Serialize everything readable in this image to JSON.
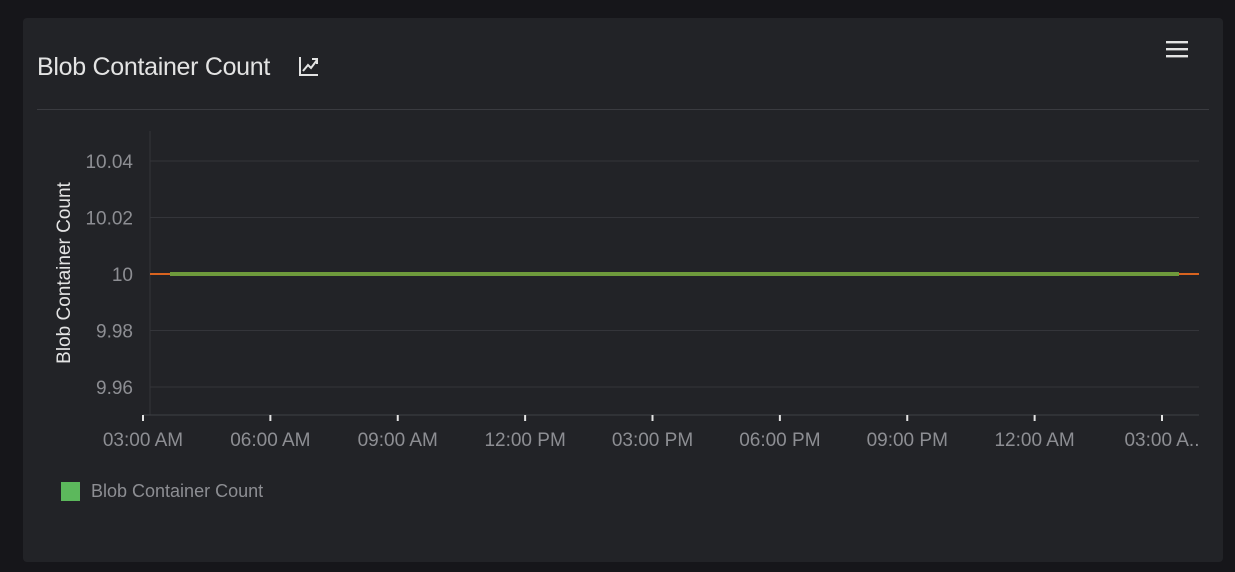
{
  "panel": {
    "title": "Blob Container Count",
    "icons": {
      "expand": "open-chart-icon",
      "menu": "hamburger-menu-icon"
    }
  },
  "colors": {
    "background": "#16161a",
    "panel": "#222327",
    "grid": "#34353a",
    "tick_text": "#8d8e93",
    "series": "#6e9a3c",
    "threshold": "#d9631f",
    "legend_swatch": "#5cb85c"
  },
  "chart_data": {
    "type": "line",
    "title": "Blob Container Count",
    "ylabel": "Blob Container Count",
    "xlabel": "",
    "ylim": [
      9.95,
      10.055
    ],
    "yticks": [
      10.04,
      10.02,
      10,
      9.98,
      9.96
    ],
    "ytick_labels": [
      "10.04",
      "10.02",
      "10",
      "9.98",
      "9.96"
    ],
    "xtick_labels": [
      "03:00 AM",
      "06:00 AM",
      "09:00 AM",
      "12:00 PM",
      "03:00 PM",
      "06:00 PM",
      "09:00 PM",
      "12:00 AM",
      "03:00 A.."
    ],
    "grid": true,
    "legend_position": "bottom-left",
    "series": [
      {
        "name": "Blob Container Count",
        "values": [
          10,
          10,
          10,
          10,
          10,
          10,
          10,
          10,
          10
        ]
      }
    ],
    "reference_line": {
      "value": 10
    }
  }
}
